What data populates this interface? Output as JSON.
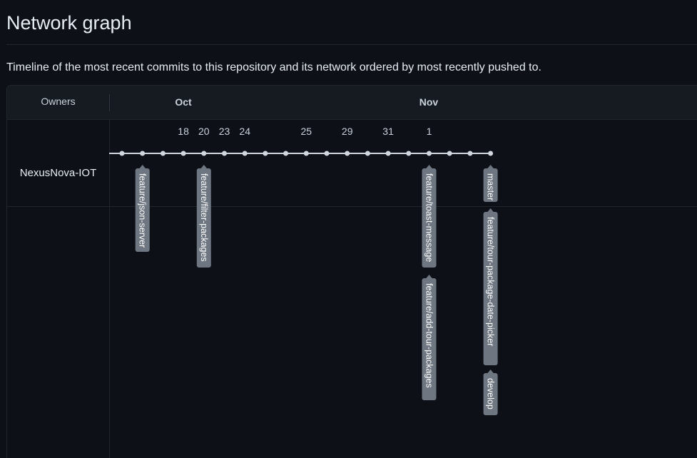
{
  "page": {
    "title": "Network graph",
    "description": "Timeline of the most recent commits to this repository and its network ordered by most recently pushed to."
  },
  "graph": {
    "owners_header": "Owners",
    "months": [
      "Oct",
      "Nov"
    ],
    "days": [
      "18",
      "20",
      "23",
      "24",
      "25",
      "29",
      "31",
      "1"
    ],
    "owners": [
      "NexusNova-IOT"
    ],
    "branches": [
      "feature/json-server",
      "feature/filter-packages",
      "feature/toast-message",
      "feature/add-tour-packages",
      "master",
      "feature/tour-package-date-picker",
      "develop"
    ],
    "commit_count": 19
  },
  "colors": {
    "background": "#0d1117",
    "panel_header": "#161b22",
    "border": "#21262d",
    "commit_line": "#d0d7de",
    "branch_label_bg": "#6e7681",
    "branch_label_text": "#ffffff"
  }
}
